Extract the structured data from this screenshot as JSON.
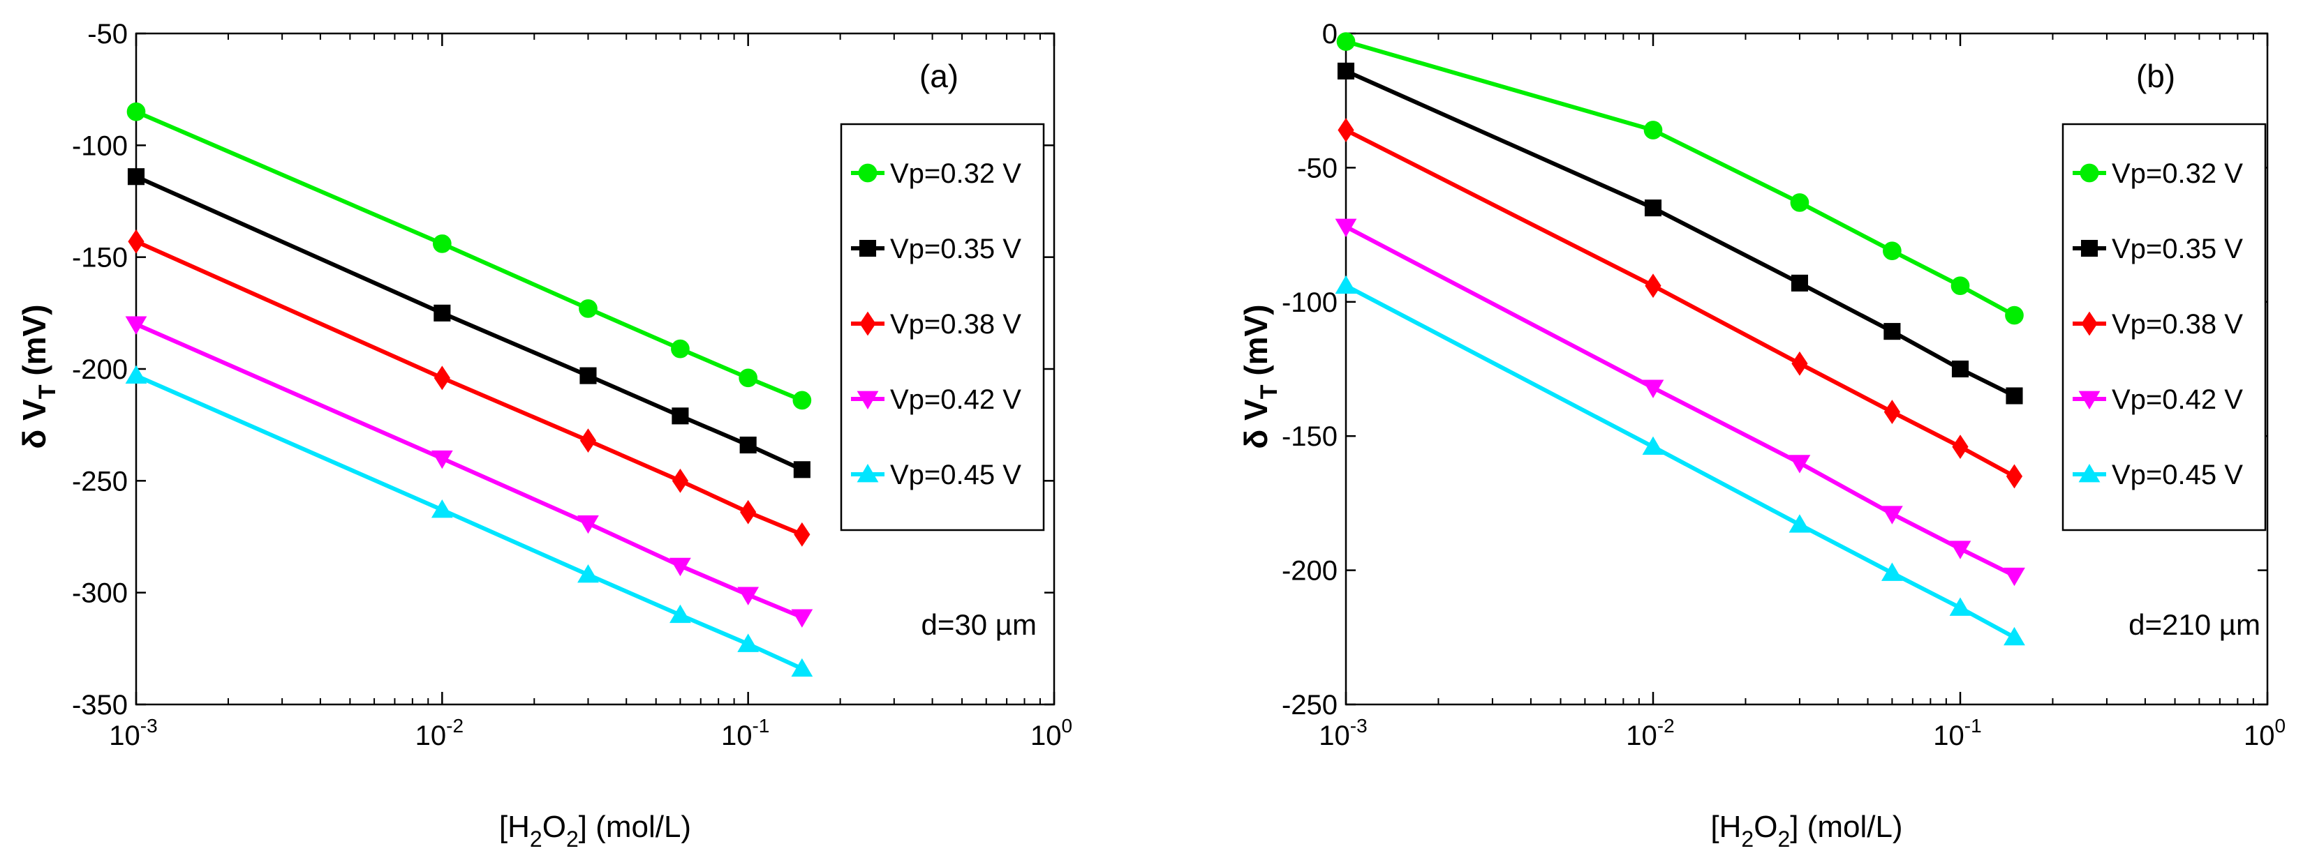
{
  "chart_data": [
    {
      "type": "line",
      "panel_label": "(a)",
      "annotation": "d=30 µm",
      "xscale": "log",
      "xlim": [
        0.001,
        1
      ],
      "ylim": [
        -350,
        -50
      ],
      "xticks": [
        {
          "v": 0.001,
          "base": "10",
          "exp": "-3"
        },
        {
          "v": 0.01,
          "base": "10",
          "exp": "-2"
        },
        {
          "v": 0.1,
          "base": "10",
          "exp": "-1"
        },
        {
          "v": 1,
          "base": "10",
          "exp": "0"
        }
      ],
      "yticks": [
        -350,
        -300,
        -250,
        -200,
        -150,
        -100,
        -50
      ],
      "x": [
        0.001,
        0.01,
        0.03,
        0.06,
        0.1,
        0.15
      ],
      "legend_position": "right",
      "series": [
        {
          "name": "Vp=0.32 V",
          "color": "#00ee00",
          "marker": "circle",
          "values": [
            -85,
            -144,
            -173,
            -191,
            -204,
            -214
          ]
        },
        {
          "name": "Vp=0.35 V",
          "color": "#000000",
          "marker": "square",
          "values": [
            -114,
            -175,
            -203,
            -221,
            -234,
            -245
          ]
        },
        {
          "name": "Vp=0.38 V",
          "color": "#ff0000",
          "marker": "diamond",
          "values": [
            -143,
            -204,
            -232,
            -250,
            -264,
            -274
          ]
        },
        {
          "name": "Vp=0.42 V",
          "color": "#ff00ff",
          "marker": "triangle-down",
          "values": [
            -180,
            -240,
            -269,
            -288,
            -301,
            -311
          ]
        },
        {
          "name": "Vp=0.45 V",
          "color": "#00e5ff",
          "marker": "triangle-up",
          "values": [
            -203,
            -263,
            -292,
            -310,
            -323,
            -334
          ]
        }
      ]
    },
    {
      "type": "line",
      "panel_label": "(b)",
      "annotation": "d=210 µm",
      "xscale": "log",
      "xlim": [
        0.001,
        1
      ],
      "ylim": [
        -250,
        0
      ],
      "xticks": [
        {
          "v": 0.001,
          "base": "10",
          "exp": "-3"
        },
        {
          "v": 0.01,
          "base": "10",
          "exp": "-2"
        },
        {
          "v": 0.1,
          "base": "10",
          "exp": "-1"
        },
        {
          "v": 1,
          "base": "10",
          "exp": "0"
        }
      ],
      "yticks": [
        -250,
        -200,
        -150,
        -100,
        -50,
        0
      ],
      "x": [
        0.001,
        0.01,
        0.03,
        0.06,
        0.1,
        0.15
      ],
      "legend_position": "right",
      "series": [
        {
          "name": "Vp=0.32 V",
          "color": "#00ee00",
          "marker": "circle",
          "values": [
            -3,
            -36,
            -63,
            -81,
            -94,
            -105
          ]
        },
        {
          "name": "Vp=0.35 V",
          "color": "#000000",
          "marker": "square",
          "values": [
            -14,
            -65,
            -93,
            -111,
            -125,
            -135
          ]
        },
        {
          "name": "Vp=0.38 V",
          "color": "#ff0000",
          "marker": "diamond",
          "values": [
            -36,
            -94,
            -123,
            -141,
            -154,
            -165
          ]
        },
        {
          "name": "Vp=0.42 V",
          "color": "#ff00ff",
          "marker": "triangle-down",
          "values": [
            -72,
            -132,
            -160,
            -179,
            -192,
            -202
          ]
        },
        {
          "name": "Vp=0.45 V",
          "color": "#00e5ff",
          "marker": "triangle-up",
          "values": [
            -94,
            -154,
            -183,
            -201,
            -214,
            -225
          ]
        }
      ]
    }
  ],
  "axis_labels": {
    "y_prefix": "δ V",
    "y_sub": "T",
    "y_suffix": " (mV)",
    "x_prefix": "[H",
    "x_sub1": "2",
    "x_mid": "O",
    "x_sub2": "2",
    "x_suffix": "] (mol/L)"
  }
}
